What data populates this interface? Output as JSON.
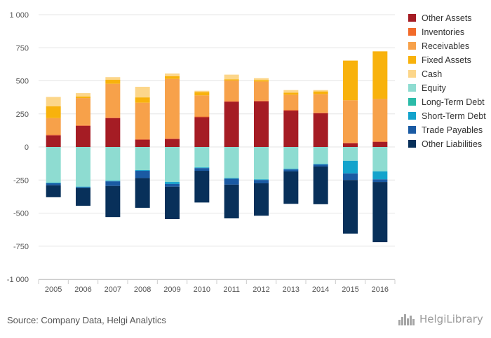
{
  "source_text": "Source: Company Data, Helgi Analytics",
  "logo_text": "HelgiLibrary",
  "chart_data": {
    "type": "bar",
    "stacked": true,
    "categories": [
      "2005",
      "2006",
      "2007",
      "2008",
      "2009",
      "2010",
      "2011",
      "2012",
      "2013",
      "2014",
      "2015",
      "2016"
    ],
    "ylim": [
      -1000,
      1000
    ],
    "yticks": [
      1000,
      750,
      500,
      250,
      0,
      -250,
      -500,
      -750,
      -1000
    ],
    "ytick_labels": [
      "1 000",
      "750",
      "500",
      "250",
      "0",
      "-250",
      "-500",
      "-750",
      "-1 000"
    ],
    "grid": true,
    "legend_position": "right",
    "series": [
      {
        "name": "Other Assets",
        "color": "#a51c24",
        "values": [
          88,
          160,
          218,
          55,
          60,
          225,
          342,
          345,
          275,
          255,
          28,
          38
        ]
      },
      {
        "name": "Inventories",
        "color": "#f26b2a",
        "values": [
          5,
          5,
          5,
          5,
          5,
          5,
          5,
          5,
          5,
          5,
          5,
          5
        ]
      },
      {
        "name": "Receivables",
        "color": "#f7a14a",
        "values": [
          125,
          205,
          255,
          275,
          450,
          160,
          155,
          145,
          115,
          140,
          320,
          320
        ]
      },
      {
        "name": "Fixed Assets",
        "color": "#f8b20c",
        "values": [
          90,
          12,
          30,
          40,
          20,
          25,
          10,
          10,
          15,
          20,
          300,
          360
        ]
      },
      {
        "name": "Cash",
        "color": "#fcd68a",
        "values": [
          70,
          25,
          20,
          80,
          20,
          10,
          35,
          15,
          20,
          10,
          0,
          0
        ]
      },
      {
        "name": "Equity",
        "color": "#8edcd1",
        "values": [
          -270,
          -300,
          -255,
          -175,
          -265,
          -155,
          -235,
          -245,
          -165,
          -128,
          -105,
          -185
        ]
      },
      {
        "name": "Long-Term Debt",
        "color": "#2bbba8",
        "values": [
          0,
          0,
          0,
          0,
          0,
          0,
          0,
          0,
          0,
          0,
          0,
          0
        ]
      },
      {
        "name": "Short-Term Debt",
        "color": "#13a3cc",
        "values": [
          -5,
          -5,
          -5,
          -5,
          -15,
          -5,
          -5,
          -5,
          -5,
          -5,
          -95,
          -60
        ]
      },
      {
        "name": "Trade Payables",
        "color": "#1a5aa3",
        "values": [
          -15,
          -5,
          -35,
          -55,
          -20,
          -20,
          -45,
          -25,
          -15,
          -15,
          -50,
          -20
        ]
      },
      {
        "name": "Other Liabilities",
        "color": "#08305a",
        "values": [
          -90,
          -135,
          -235,
          -225,
          -245,
          -240,
          -255,
          -245,
          -245,
          -285,
          -405,
          -455
        ]
      }
    ]
  }
}
